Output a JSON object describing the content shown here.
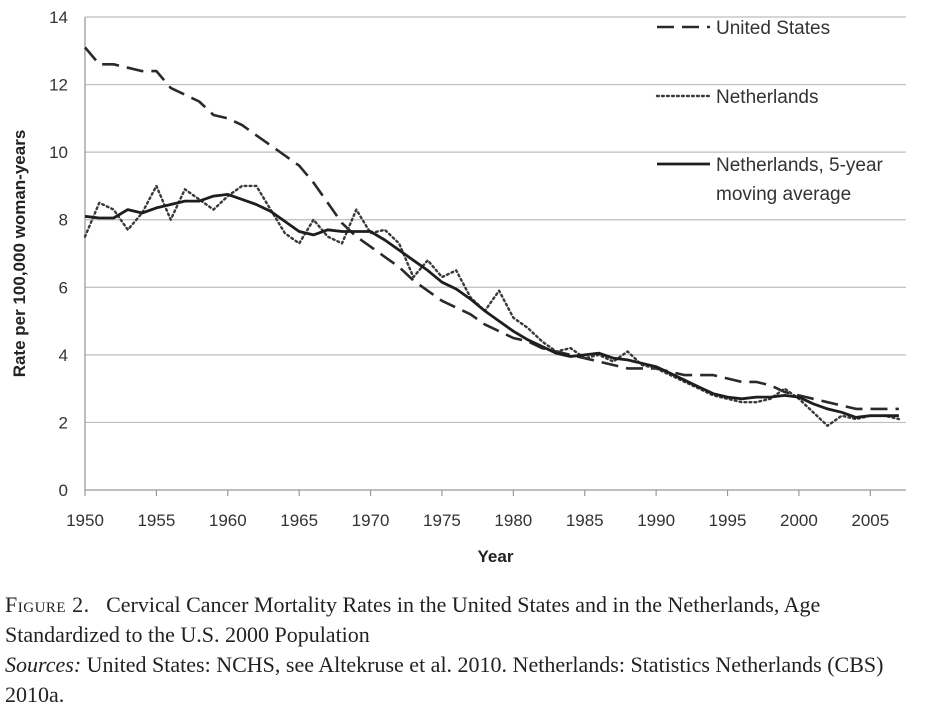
{
  "chart_data": {
    "type": "line",
    "xlabel": "Year",
    "ylabel": "Rate per 100,000 woman-years",
    "xlim": [
      1950,
      2007.5
    ],
    "ylim": [
      0,
      14
    ],
    "xticks": [
      1950,
      1955,
      1960,
      1965,
      1970,
      1975,
      1980,
      1985,
      1990,
      1995,
      2000,
      2005
    ],
    "yticks": [
      0,
      2,
      4,
      6,
      8,
      10,
      12,
      14
    ],
    "grid": "horizontal",
    "legend_position": "top-right",
    "series": [
      {
        "name": "United States",
        "style": "dashed",
        "x": [
          1950,
          1951,
          1952,
          1953,
          1954,
          1955,
          1956,
          1957,
          1958,
          1959,
          1960,
          1961,
          1962,
          1963,
          1964,
          1965,
          1966,
          1967,
          1968,
          1969,
          1970,
          1971,
          1972,
          1973,
          1974,
          1975,
          1976,
          1977,
          1978,
          1979,
          1980,
          1981,
          1982,
          1983,
          1984,
          1985,
          1986,
          1987,
          1988,
          1989,
          1990,
          1991,
          1992,
          1993,
          1994,
          1995,
          1996,
          1997,
          1998,
          1999,
          2000,
          2001,
          2002,
          2003,
          2004,
          2005,
          2006,
          2007
        ],
        "y": [
          13.1,
          12.6,
          12.6,
          12.5,
          12.4,
          12.4,
          11.9,
          11.7,
          11.5,
          11.1,
          11.0,
          10.8,
          10.5,
          10.2,
          9.9,
          9.6,
          9.1,
          8.5,
          7.9,
          7.5,
          7.2,
          6.9,
          6.6,
          6.2,
          5.9,
          5.6,
          5.4,
          5.2,
          4.9,
          4.7,
          4.5,
          4.4,
          4.2,
          4.1,
          4.0,
          3.9,
          3.8,
          3.7,
          3.6,
          3.6,
          3.6,
          3.5,
          3.4,
          3.4,
          3.4,
          3.3,
          3.2,
          3.2,
          3.1,
          2.9,
          2.8,
          2.7,
          2.6,
          2.5,
          2.4,
          2.4,
          2.4,
          2.4
        ]
      },
      {
        "name": "Netherlands",
        "style": "dotted",
        "x": [
          1950,
          1951,
          1952,
          1953,
          1954,
          1955,
          1956,
          1957,
          1958,
          1959,
          1960,
          1961,
          1962,
          1963,
          1964,
          1965,
          1966,
          1967,
          1968,
          1969,
          1970,
          1971,
          1972,
          1973,
          1974,
          1975,
          1976,
          1977,
          1978,
          1979,
          1980,
          1981,
          1982,
          1983,
          1984,
          1985,
          1986,
          1987,
          1988,
          1989,
          1990,
          1991,
          1992,
          1993,
          1994,
          1995,
          1996,
          1997,
          1998,
          1999,
          2000,
          2001,
          2002,
          2003,
          2004,
          2005,
          2006,
          2007
        ],
        "y": [
          7.5,
          8.5,
          8.3,
          7.7,
          8.2,
          9.0,
          8.0,
          8.9,
          8.6,
          8.3,
          8.7,
          9.0,
          9.0,
          8.3,
          7.6,
          7.3,
          8.0,
          7.5,
          7.3,
          8.3,
          7.6,
          7.7,
          7.3,
          6.3,
          6.8,
          6.3,
          6.5,
          5.7,
          5.3,
          5.9,
          5.1,
          4.8,
          4.4,
          4.1,
          4.2,
          3.9,
          4.0,
          3.8,
          4.1,
          3.7,
          3.6,
          3.4,
          3.2,
          3.0,
          2.8,
          2.7,
          2.6,
          2.6,
          2.7,
          3.0,
          2.7,
          2.3,
          1.9,
          2.2,
          2.1,
          2.2,
          2.2,
          2.1
        ]
      },
      {
        "name": "Netherlands, 5-year moving average",
        "style": "solid",
        "x": [
          1950,
          1951,
          1952,
          1953,
          1954,
          1955,
          1956,
          1957,
          1958,
          1959,
          1960,
          1961,
          1962,
          1963,
          1964,
          1965,
          1966,
          1967,
          1968,
          1969,
          1970,
          1971,
          1972,
          1973,
          1974,
          1975,
          1976,
          1977,
          1978,
          1979,
          1980,
          1981,
          1982,
          1983,
          1984,
          1985,
          1986,
          1987,
          1988,
          1989,
          1990,
          1991,
          1992,
          1993,
          1994,
          1995,
          1996,
          1997,
          1998,
          1999,
          2000,
          2001,
          2002,
          2003,
          2004,
          2005,
          2006,
          2007
        ],
        "y": [
          8.1,
          8.05,
          8.05,
          8.3,
          8.2,
          8.35,
          8.45,
          8.55,
          8.55,
          8.7,
          8.75,
          8.6,
          8.45,
          8.25,
          7.95,
          7.65,
          7.55,
          7.7,
          7.65,
          7.65,
          7.65,
          7.4,
          7.1,
          6.8,
          6.5,
          6.15,
          5.95,
          5.65,
          5.3,
          5.0,
          4.7,
          4.45,
          4.25,
          4.05,
          3.95,
          4.0,
          4.05,
          3.9,
          3.85,
          3.75,
          3.65,
          3.45,
          3.25,
          3.05,
          2.85,
          2.75,
          2.7,
          2.75,
          2.75,
          2.8,
          2.75,
          2.55,
          2.4,
          2.3,
          2.15,
          2.2,
          2.2,
          2.2
        ]
      }
    ]
  },
  "caption": {
    "figure_label": "Figure 2.",
    "title": "Cervical Cancer Mortality Rates in the United States and in the Netherlands, Age Standardized to the U.S. 2000 Population",
    "sources_label": "Sources:",
    "sources_text": "United States: NCHS, see Altekruse et al. 2010. Netherlands: Statistics Netherlands (CBS) 2010a."
  },
  "legend": {
    "line1": [
      "United States"
    ],
    "line2": [
      "Netherlands"
    ],
    "line3": [
      "Netherlands, 5-year",
      "moving average"
    ]
  }
}
